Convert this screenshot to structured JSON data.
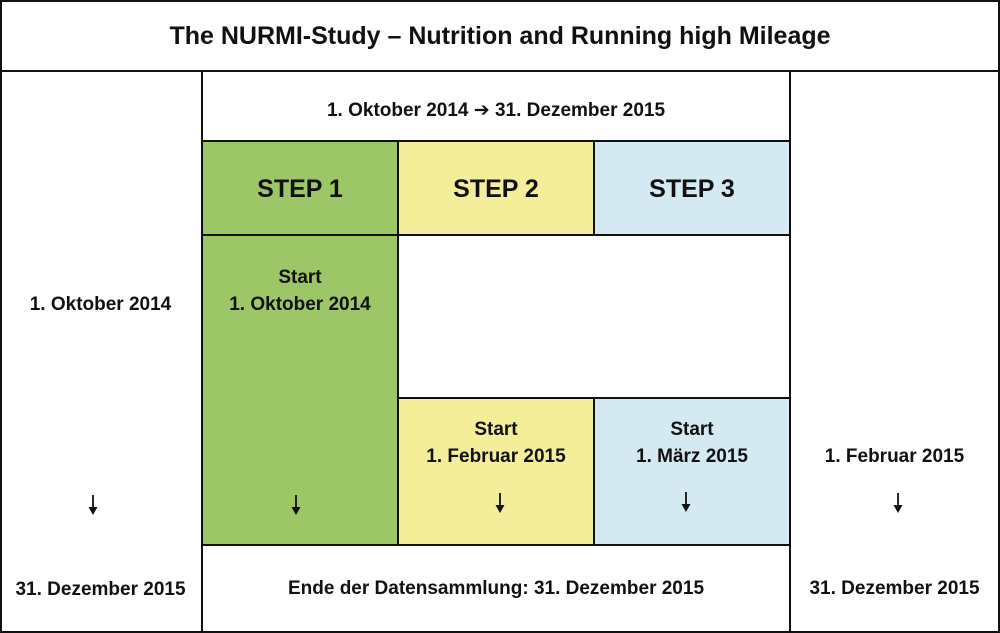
{
  "title": "The NURMI-Study – Nutrition and Running high Mileage",
  "period": "1. Oktober 2014 ➔ 31. Dezember 2015",
  "left_column": {
    "start": "1. Oktober 2014",
    "end": "31. Dezember 2015"
  },
  "right_column": {
    "start": "1. Februar 2015",
    "end": "31. Dezember 2015"
  },
  "steps": [
    {
      "label": "STEP 1",
      "start_label": "Start",
      "start_date": "1. Oktober 2014"
    },
    {
      "label": "STEP 2",
      "start_label": "Start",
      "start_date": "1. Februar 2015"
    },
    {
      "label": "STEP 3",
      "start_label": "Start",
      "start_date": "1. März 2015"
    }
  ],
  "footer": "Ende der Datensammlung: 31. Dezember 2015",
  "colors": {
    "step1": "#9dc766",
    "step2": "#f4ee9a",
    "step3": "#d4e9f1",
    "border": "#111111"
  },
  "icons": [
    "arrow-right-icon",
    "arrow-down-icon"
  ]
}
